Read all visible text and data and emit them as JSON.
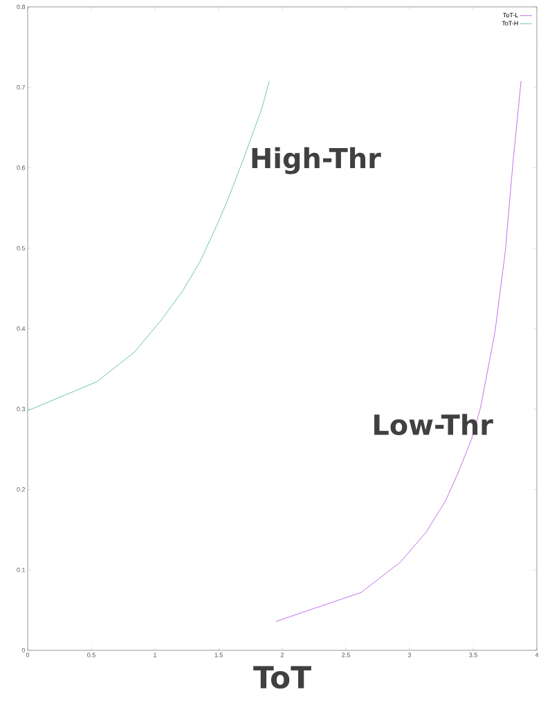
{
  "chart_data": {
    "type": "line",
    "xlabel": "ToT",
    "xlim": [
      0,
      4
    ],
    "ylim": [
      0,
      0.8
    ],
    "xticks": [
      0,
      0.5,
      1,
      1.5,
      2,
      2.5,
      3,
      3.5,
      4
    ],
    "yticks": [
      0,
      0.1,
      0.2,
      0.3,
      0.4,
      0.5,
      0.6,
      0.7,
      0.8
    ],
    "grid": true,
    "legend": "top right",
    "marker": "none",
    "line_style": "solid",
    "annotations": [
      "High-Thr",
      "Low-Thr"
    ],
    "series": [
      {
        "name": "ToT-L",
        "color": "#b24ce6",
        "x": [
          1.952,
          2.62,
          2.93,
          3.13,
          3.28,
          3.385,
          3.488,
          3.558,
          3.671,
          3.752,
          3.811,
          3.876
        ],
        "values": [
          0.036,
          0.072,
          0.11,
          0.147,
          0.185,
          0.222,
          0.263,
          0.302,
          0.396,
          0.496,
          0.604,
          0.708
        ]
      },
      {
        "name": "ToT-H",
        "color": "#45b995",
        "x": [
          0,
          0.544,
          0.84,
          1.046,
          1.218,
          1.353,
          1.493,
          1.569,
          1.693,
          1.838,
          1.898
        ],
        "values": [
          0.298,
          0.334,
          0.371,
          0.41,
          0.447,
          0.483,
          0.531,
          0.559,
          0.61,
          0.673,
          0.708
        ]
      }
    ]
  }
}
